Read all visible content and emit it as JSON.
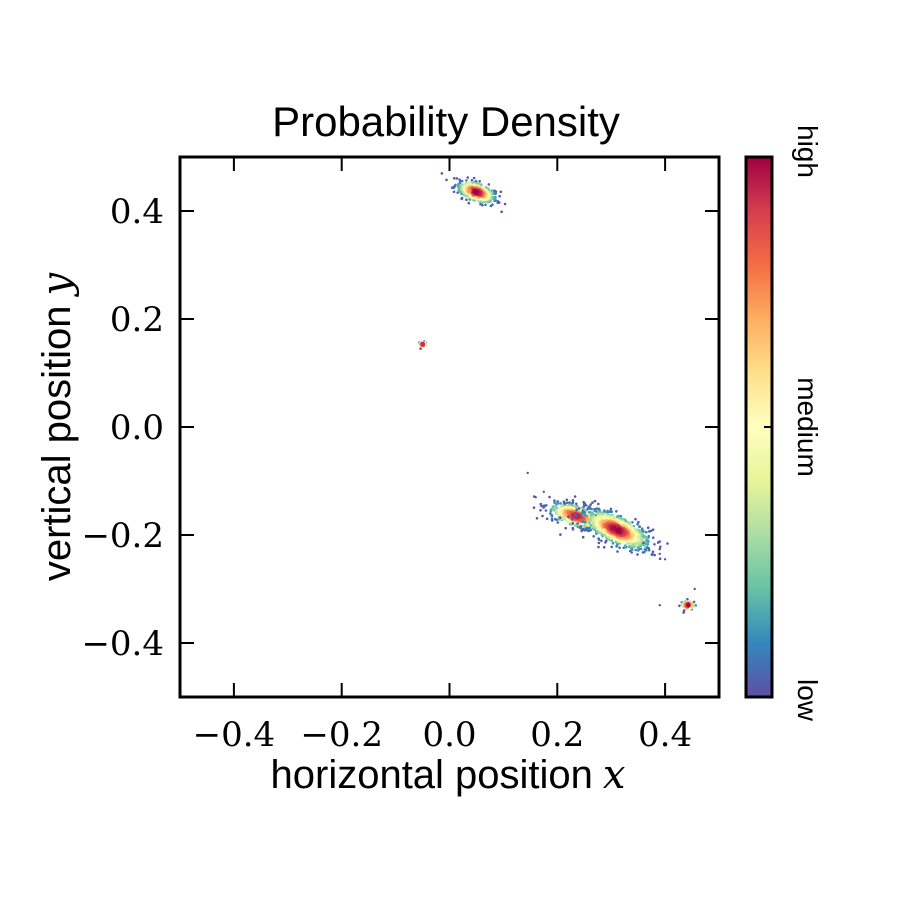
{
  "chart_data": {
    "type": "scatter",
    "title": "Probability Density",
    "xlabel": "horizontal position",
    "xlabel_var": "x",
    "ylabel": "vertical position",
    "ylabel_var": "y",
    "xlim": [
      -0.5,
      0.5
    ],
    "ylim": [
      -0.5,
      0.5
    ],
    "xticks": [
      -0.4,
      -0.2,
      0.0,
      0.2,
      0.4
    ],
    "xtick_labels": [
      "−0.4",
      "−0.2",
      "0.0",
      "0.2",
      "0.4"
    ],
    "yticks": [
      -0.4,
      -0.2,
      0.0,
      0.2,
      0.4
    ],
    "ytick_labels": [
      "−0.4",
      "−0.2",
      "0.0",
      "0.2",
      "0.4"
    ],
    "grid": false,
    "colormap": "Spectral_r",
    "colormap_stops": [
      "#5e4fa2",
      "#3288bd",
      "#66c2a5",
      "#abdda4",
      "#e6f598",
      "#ffffbf",
      "#fee08b",
      "#fdae61",
      "#f46d43",
      "#d53e4f",
      "#9e0142"
    ],
    "colorbar": {
      "labels": [
        "high",
        "medium",
        "low"
      ],
      "label_levels": [
        1.0,
        0.5,
        0.0
      ]
    },
    "clusters": [
      {
        "cx": 0.05,
        "cy": 0.435,
        "sx": 0.018,
        "sy": 0.008,
        "angle_deg": -20,
        "peak": 1.0,
        "n": 260
      },
      {
        "cx": -0.05,
        "cy": 0.153,
        "sx": 0.003,
        "sy": 0.002,
        "angle_deg": 0,
        "peak": 1.0,
        "n": 20
      },
      {
        "cx": 0.235,
        "cy": -0.165,
        "sx": 0.026,
        "sy": 0.009,
        "angle_deg": -18,
        "peak": 0.95,
        "n": 320
      },
      {
        "cx": 0.31,
        "cy": -0.19,
        "sx": 0.032,
        "sy": 0.012,
        "angle_deg": -25,
        "peak": 1.0,
        "n": 520
      },
      {
        "cx": 0.443,
        "cy": -0.33,
        "sx": 0.006,
        "sy": 0.004,
        "angle_deg": 0,
        "peak": 1.0,
        "n": 40
      }
    ],
    "outliers": [
      [
        0.145,
        -0.085
      ],
      [
        0.16,
        -0.13
      ],
      [
        0.175,
        -0.12
      ],
      [
        0.39,
        -0.235
      ],
      [
        0.4,
        -0.245
      ],
      [
        0.37,
        -0.225
      ],
      [
        0.455,
        -0.3
      ],
      [
        0.39,
        -0.33
      ],
      [
        0.09,
        0.418
      ],
      [
        0.02,
        0.455
      ],
      [
        0.18,
        -0.145
      ],
      [
        0.36,
        -0.215
      ]
    ]
  }
}
